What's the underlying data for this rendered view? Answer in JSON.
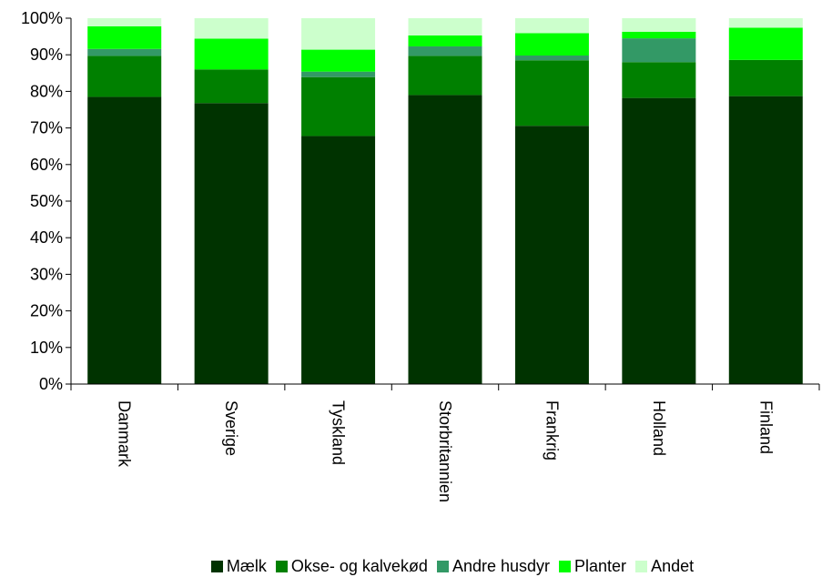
{
  "chart_data": {
    "type": "bar",
    "stacked": true,
    "percent": true,
    "categories": [
      "Danmark",
      "Sverige",
      "Tyskland",
      "Storbritannien",
      "Frankrig",
      "Holland",
      "Finland"
    ],
    "series": [
      {
        "name": "Mælk",
        "color": "#003300",
        "values": [
          78.5,
          76.8,
          67.8,
          79.0,
          70.6,
          78.2,
          78.7
        ]
      },
      {
        "name": "Okse- og kalvekød",
        "color": "#008000",
        "values": [
          11.2,
          9.2,
          16.1,
          10.7,
          17.9,
          9.8,
          9.9
        ]
      },
      {
        "name": "Andre husdyr",
        "color": "#339966",
        "values": [
          1.9,
          0.0,
          1.5,
          2.6,
          1.3,
          6.5,
          0.0
        ]
      },
      {
        "name": "Planter",
        "color": "#00ff00",
        "values": [
          6.2,
          8.4,
          6.0,
          3.0,
          6.1,
          1.8,
          8.8
        ]
      },
      {
        "name": "Andet",
        "color": "#ccffcc",
        "values": [
          2.2,
          5.6,
          8.6,
          4.7,
          4.1,
          3.7,
          2.6
        ]
      }
    ],
    "y_ticks": [
      "0%",
      "10%",
      "20%",
      "30%",
      "40%",
      "50%",
      "60%",
      "70%",
      "80%",
      "90%",
      "100%"
    ],
    "ylim": [
      0,
      100
    ],
    "legend_position": "bottom",
    "grid": false
  }
}
